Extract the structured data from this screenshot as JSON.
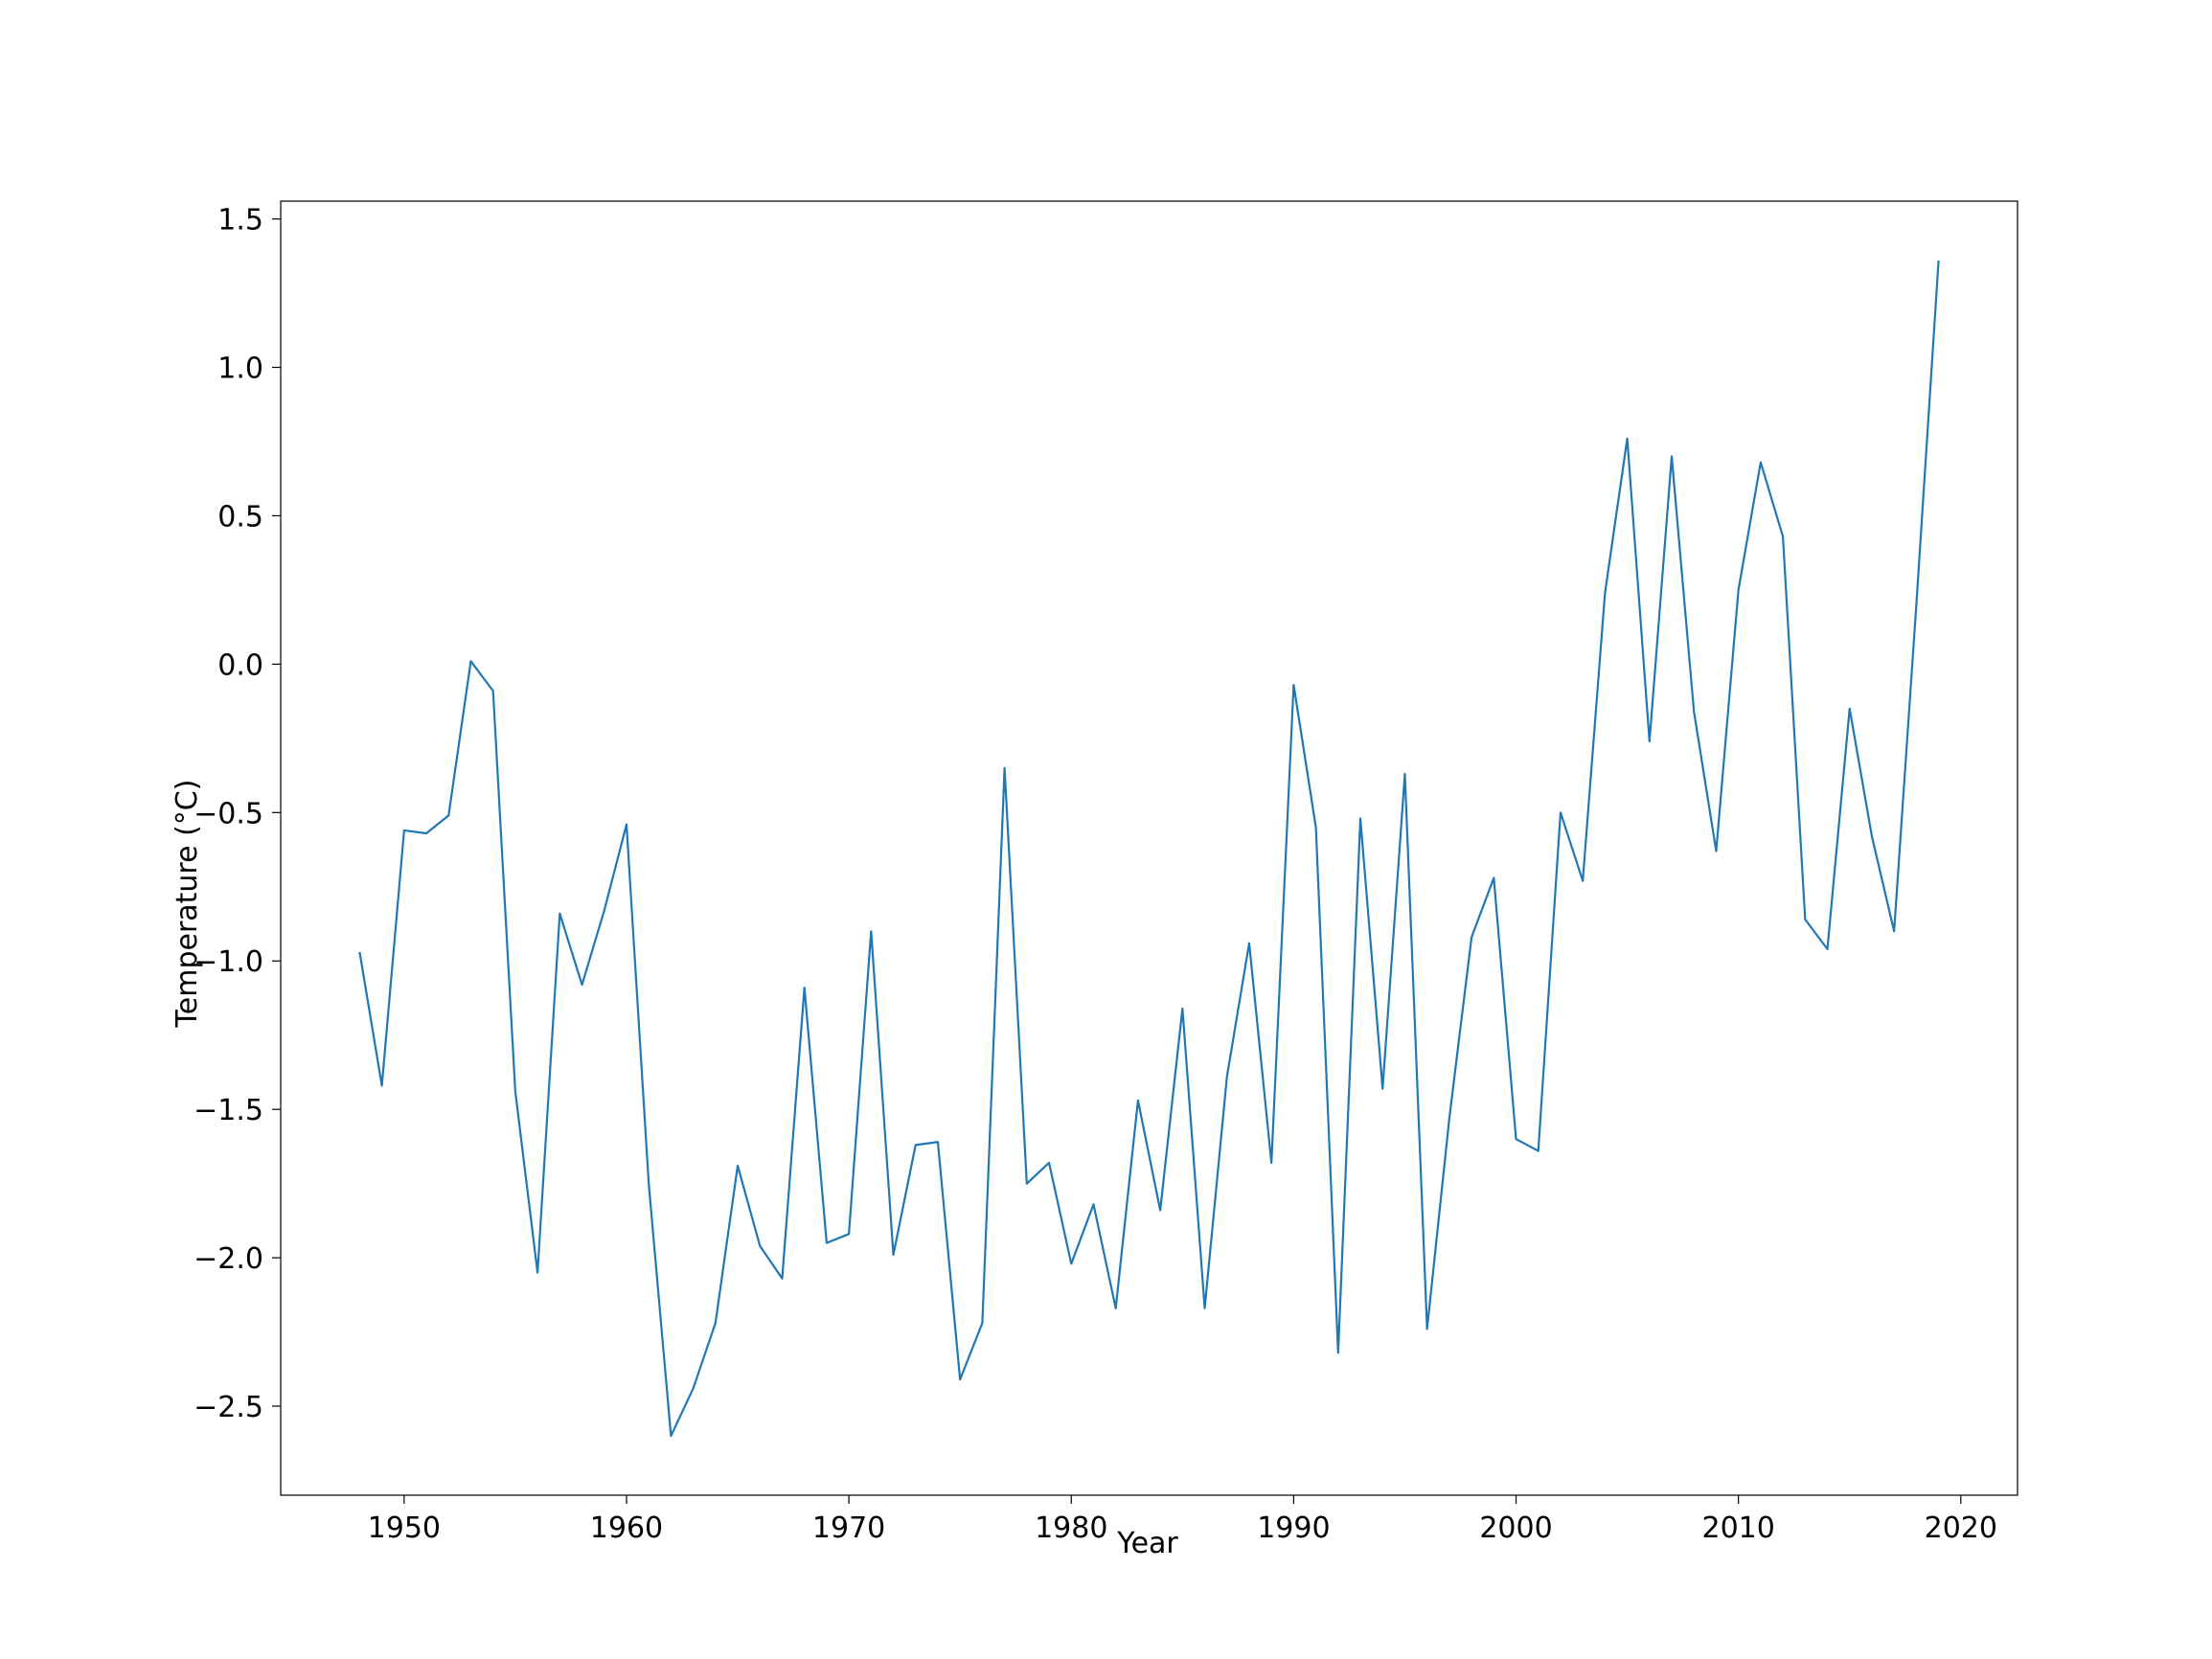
{
  "chart_data": {
    "type": "line",
    "title": "",
    "xlabel": "Year",
    "ylabel": "Temperature (°C)",
    "xlim": [
      1944.45,
      2022.55
    ],
    "ylim": [
      -2.8,
      1.56
    ],
    "xticks": [
      1950,
      1960,
      1970,
      1980,
      1990,
      2000,
      2010,
      2020
    ],
    "yticks": [
      -2.5,
      -2.0,
      -1.5,
      -1.0,
      -0.5,
      0.0,
      0.5,
      1.0,
      1.5
    ],
    "xtick_labels": [
      "1950",
      "1960",
      "1970",
      "1980",
      "1990",
      "2000",
      "2010",
      "2020"
    ],
    "ytick_labels": [
      "−2.5",
      "−2.0",
      "−1.5",
      "−1.0",
      "−0.5",
      "0.0",
      "0.5",
      "1.0",
      "1.5"
    ],
    "grid": false,
    "legend": "none",
    "line_color": "#1f77b4",
    "series": [
      {
        "x": [
          1948,
          1949,
          1950,
          1951,
          1952,
          1953,
          1954,
          1955,
          1956,
          1957,
          1958,
          1959,
          1960,
          1961,
          1962,
          1963,
          1964,
          1965,
          1966,
          1967,
          1968,
          1969,
          1970,
          1971,
          1972,
          1973,
          1974,
          1975,
          1976,
          1977,
          1978,
          1979,
          1980,
          1981,
          1982,
          1983,
          1984,
          1985,
          1986,
          1987,
          1988,
          1989,
          1990,
          1991,
          1992,
          1993,
          1994,
          1995,
          1996,
          1997,
          1998,
          1999,
          2000,
          2001,
          2002,
          2003,
          2004,
          2005,
          2006,
          2007,
          2008,
          2009,
          2010,
          2011,
          2012,
          2013,
          2014,
          2015,
          2016,
          2017,
          2018,
          2019
        ],
        "y": [
          -0.97,
          -1.42,
          -0.56,
          -0.57,
          -0.51,
          0.01,
          -0.09,
          -1.44,
          -2.05,
          -0.84,
          -1.08,
          -0.83,
          -0.54,
          -1.75,
          -2.6,
          -2.44,
          -2.22,
          -1.69,
          -1.96,
          -2.07,
          -1.09,
          -1.95,
          -1.92,
          -0.9,
          -1.99,
          -1.62,
          -1.61,
          -2.41,
          -2.22,
          -0.35,
          -1.75,
          -1.68,
          -2.02,
          -1.82,
          -2.17,
          -1.47,
          -1.84,
          -1.16,
          -2.17,
          -1.39,
          -0.94,
          -1.68,
          -0.07,
          -0.55,
          -2.32,
          -0.52,
          -1.43,
          -0.37,
          -2.24,
          -1.53,
          -0.92,
          -0.72,
          -1.6,
          -1.64,
          -0.5,
          -0.73,
          0.24,
          0.76,
          -0.26,
          0.7,
          -0.16,
          -0.63,
          0.25,
          0.68,
          0.43,
          -0.86,
          -0.96,
          -0.15,
          -0.58,
          -0.9,
          0.2,
          1.36
        ]
      }
    ]
  }
}
